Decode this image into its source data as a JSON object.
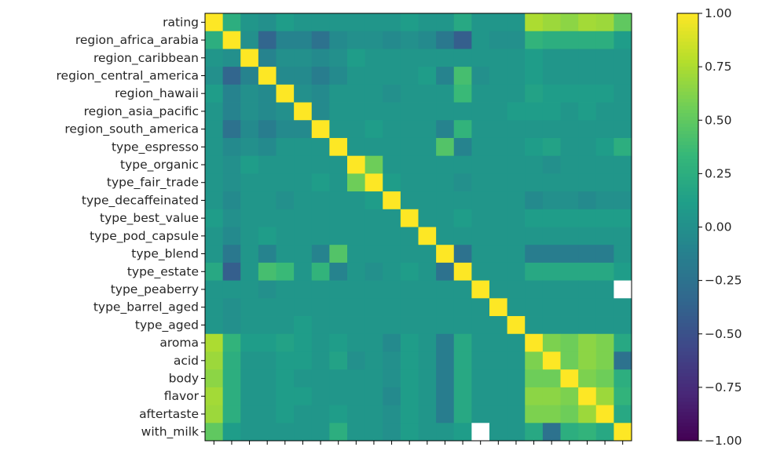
{
  "chart_data": {
    "type": "heatmap",
    "title": "",
    "xlabel": "",
    "ylabel": "",
    "labels": [
      "rating",
      "region_africa_arabia",
      "region_caribbean",
      "region_central_america",
      "region_hawaii",
      "region_asia_pacific",
      "region_south_america",
      "type_espresso",
      "type_organic",
      "type_fair_trade",
      "type_decaffeinated",
      "type_best_value",
      "type_pod_capsule",
      "type_blend",
      "type_estate",
      "type_peaberry",
      "type_barrel_aged",
      "type_aged",
      "aroma",
      "acid",
      "body",
      "flavor",
      "aftertaste",
      "with_milk"
    ],
    "x_tick_labels_visible": false,
    "matrix": [
      [
        1.0,
        0.25,
        0.05,
        0.0,
        0.1,
        0.05,
        0.05,
        0.05,
        0.05,
        0.05,
        0.05,
        0.1,
        0.05,
        0.05,
        0.2,
        0.05,
        0.05,
        0.05,
        0.75,
        0.7,
        0.65,
        0.72,
        0.7,
        0.5
      ],
      [
        0.25,
        1.0,
        0.0,
        -0.35,
        -0.1,
        -0.1,
        -0.25,
        -0.05,
        0.0,
        0.0,
        -0.05,
        0.0,
        -0.05,
        -0.2,
        -0.4,
        0.05,
        0.0,
        0.0,
        0.3,
        0.25,
        0.25,
        0.25,
        0.25,
        0.1
      ],
      [
        0.05,
        0.0,
        1.0,
        -0.1,
        0.0,
        0.0,
        -0.05,
        0.0,
        0.1,
        0.05,
        0.05,
        0.05,
        0.05,
        0.05,
        0.05,
        0.05,
        0.05,
        0.05,
        0.1,
        0.05,
        0.05,
        0.05,
        0.05,
        0.05
      ],
      [
        0.0,
        -0.35,
        -0.1,
        1.0,
        -0.05,
        -0.05,
        -0.15,
        -0.05,
        0.05,
        0.05,
        0.05,
        0.05,
        0.1,
        -0.1,
        0.4,
        0.0,
        0.05,
        0.05,
        0.1,
        0.05,
        0.05,
        0.05,
        0.05,
        0.05
      ],
      [
        0.1,
        -0.1,
        0.0,
        -0.05,
        1.0,
        0.0,
        -0.05,
        0.05,
        0.05,
        0.05,
        0.0,
        0.05,
        0.05,
        0.05,
        0.35,
        0.05,
        0.05,
        0.05,
        0.15,
        0.1,
        0.1,
        0.1,
        0.1,
        0.05
      ],
      [
        0.05,
        -0.1,
        0.0,
        -0.05,
        0.0,
        1.0,
        -0.05,
        0.05,
        0.05,
        0.05,
        0.05,
        0.05,
        0.05,
        0.05,
        0.05,
        0.05,
        0.05,
        0.1,
        0.1,
        0.1,
        0.05,
        0.1,
        0.05,
        0.05
      ],
      [
        0.05,
        -0.25,
        -0.05,
        -0.15,
        -0.05,
        -0.05,
        1.0,
        0.05,
        0.05,
        0.1,
        0.05,
        0.05,
        0.05,
        -0.1,
        0.3,
        0.05,
        0.05,
        0.05,
        0.05,
        0.05,
        0.05,
        0.05,
        0.05,
        0.05
      ],
      [
        0.05,
        -0.05,
        0.0,
        -0.05,
        0.05,
        0.05,
        0.05,
        1.0,
        0.05,
        0.05,
        0.05,
        0.05,
        0.05,
        0.45,
        -0.1,
        0.05,
        0.05,
        0.05,
        0.1,
        0.15,
        0.05,
        0.05,
        0.1,
        0.25
      ],
      [
        0.05,
        0.0,
        0.1,
        0.05,
        0.05,
        0.05,
        0.05,
        0.05,
        1.0,
        0.55,
        0.05,
        0.05,
        0.05,
        0.05,
        0.05,
        0.05,
        0.05,
        0.05,
        0.05,
        0.0,
        0.05,
        0.05,
        0.05,
        0.05
      ],
      [
        0.05,
        0.0,
        0.05,
        0.05,
        0.05,
        0.05,
        0.1,
        0.05,
        0.55,
        1.0,
        0.1,
        0.05,
        0.05,
        0.05,
        0.0,
        0.05,
        0.05,
        0.05,
        0.05,
        0.05,
        0.05,
        0.05,
        0.05,
        0.05
      ],
      [
        0.05,
        -0.05,
        0.05,
        0.05,
        0.0,
        0.05,
        0.05,
        0.05,
        0.05,
        0.1,
        1.0,
        0.05,
        0.05,
        0.05,
        0.05,
        0.05,
        0.05,
        0.05,
        -0.05,
        0.0,
        0.0,
        -0.05,
        0.0,
        0.0
      ],
      [
        0.1,
        0.0,
        0.05,
        0.05,
        0.05,
        0.05,
        0.05,
        0.05,
        0.05,
        0.05,
        0.05,
        1.0,
        0.05,
        0.05,
        0.1,
        0.05,
        0.05,
        0.05,
        0.1,
        0.1,
        0.1,
        0.1,
        0.1,
        0.1
      ],
      [
        0.05,
        -0.05,
        0.05,
        0.1,
        0.05,
        0.05,
        0.05,
        0.05,
        0.05,
        0.05,
        0.05,
        0.05,
        1.0,
        0.05,
        0.05,
        0.05,
        0.05,
        0.05,
        0.05,
        0.05,
        0.05,
        0.05,
        0.05,
        0.05
      ],
      [
        0.05,
        -0.2,
        0.05,
        -0.1,
        0.05,
        0.05,
        -0.1,
        0.45,
        0.05,
        0.05,
        0.05,
        0.05,
        0.05,
        1.0,
        -0.25,
        0.05,
        0.05,
        0.05,
        -0.15,
        -0.15,
        -0.15,
        -0.15,
        -0.15,
        0.05
      ],
      [
        0.2,
        -0.4,
        0.05,
        0.4,
        0.35,
        0.05,
        0.3,
        -0.1,
        0.05,
        0.0,
        0.05,
        0.1,
        0.05,
        -0.25,
        1.0,
        0.05,
        0.05,
        0.05,
        0.2,
        0.2,
        0.2,
        0.2,
        0.2,
        0.1
      ],
      [
        0.05,
        0.05,
        0.05,
        0.0,
        0.05,
        0.05,
        0.05,
        0.05,
        0.05,
        0.05,
        0.05,
        0.05,
        0.05,
        0.05,
        0.05,
        1.0,
        0.05,
        0.05,
        0.05,
        0.05,
        0.05,
        0.05,
        0.05,
        null
      ],
      [
        0.05,
        0.0,
        0.05,
        0.05,
        0.05,
        0.05,
        0.05,
        0.05,
        0.05,
        0.05,
        0.05,
        0.05,
        0.05,
        0.05,
        0.05,
        0.05,
        1.0,
        0.05,
        0.05,
        0.05,
        0.05,
        0.05,
        0.05,
        0.05
      ],
      [
        0.05,
        0.0,
        0.05,
        0.05,
        0.05,
        0.1,
        0.05,
        0.05,
        0.05,
        0.05,
        0.05,
        0.05,
        0.05,
        0.05,
        0.05,
        0.05,
        0.05,
        1.0,
        0.05,
        0.05,
        0.05,
        0.05,
        0.05,
        0.05
      ],
      [
        0.75,
        0.3,
        0.1,
        0.1,
        0.15,
        0.1,
        0.05,
        0.1,
        0.05,
        0.05,
        -0.05,
        0.1,
        0.05,
        -0.15,
        0.2,
        0.05,
        0.05,
        0.05,
        1.0,
        0.6,
        0.55,
        0.65,
        0.6,
        0.2
      ],
      [
        0.7,
        0.25,
        0.05,
        0.05,
        0.1,
        0.1,
        0.05,
        0.15,
        0.0,
        0.05,
        0.0,
        0.1,
        0.05,
        -0.15,
        0.2,
        0.05,
        0.05,
        0.05,
        0.6,
        1.0,
        0.55,
        0.65,
        0.6,
        -0.25
      ],
      [
        0.65,
        0.25,
        0.05,
        0.05,
        0.1,
        0.05,
        0.05,
        0.05,
        0.05,
        0.05,
        0.0,
        0.1,
        0.05,
        -0.15,
        0.2,
        0.05,
        0.05,
        0.05,
        0.55,
        0.55,
        1.0,
        0.6,
        0.55,
        0.25
      ],
      [
        0.72,
        0.25,
        0.05,
        0.05,
        0.1,
        0.1,
        0.05,
        0.05,
        0.05,
        0.05,
        -0.05,
        0.1,
        0.05,
        -0.15,
        0.2,
        0.05,
        0.05,
        0.05,
        0.65,
        0.65,
        0.6,
        1.0,
        0.7,
        0.3
      ],
      [
        0.7,
        0.25,
        0.05,
        0.05,
        0.1,
        0.05,
        0.05,
        0.1,
        0.05,
        0.05,
        0.0,
        0.1,
        0.05,
        -0.15,
        0.2,
        0.05,
        0.05,
        0.05,
        0.6,
        0.6,
        0.55,
        0.7,
        1.0,
        0.2
      ],
      [
        0.5,
        0.1,
        0.05,
        0.05,
        0.05,
        0.05,
        0.05,
        0.25,
        0.05,
        0.05,
        0.0,
        0.1,
        0.05,
        0.05,
        0.1,
        null,
        0.05,
        0.05,
        0.2,
        -0.25,
        0.25,
        0.3,
        0.2,
        1.0
      ]
    ],
    "colorbar": {
      "min": -1.0,
      "max": 1.0,
      "ticks": [
        "1.00",
        "0.75",
        "0.50",
        "0.25",
        "0.00",
        "−0.25",
        "−0.50",
        "−0.75",
        "−1.00"
      ],
      "tick_values": [
        1.0,
        0.75,
        0.5,
        0.25,
        0.0,
        -0.25,
        -0.5,
        -0.75,
        -1.0
      ]
    },
    "colormap": "viridis",
    "colormap_stops": [
      "#440154",
      "#482878",
      "#3e4989",
      "#31688e",
      "#26828e",
      "#1f9e89",
      "#35b779",
      "#6ece58",
      "#b5de2b",
      "#fde725"
    ],
    "missing_color": "#ffffff",
    "grid": false,
    "legend": "colorbar-right"
  }
}
